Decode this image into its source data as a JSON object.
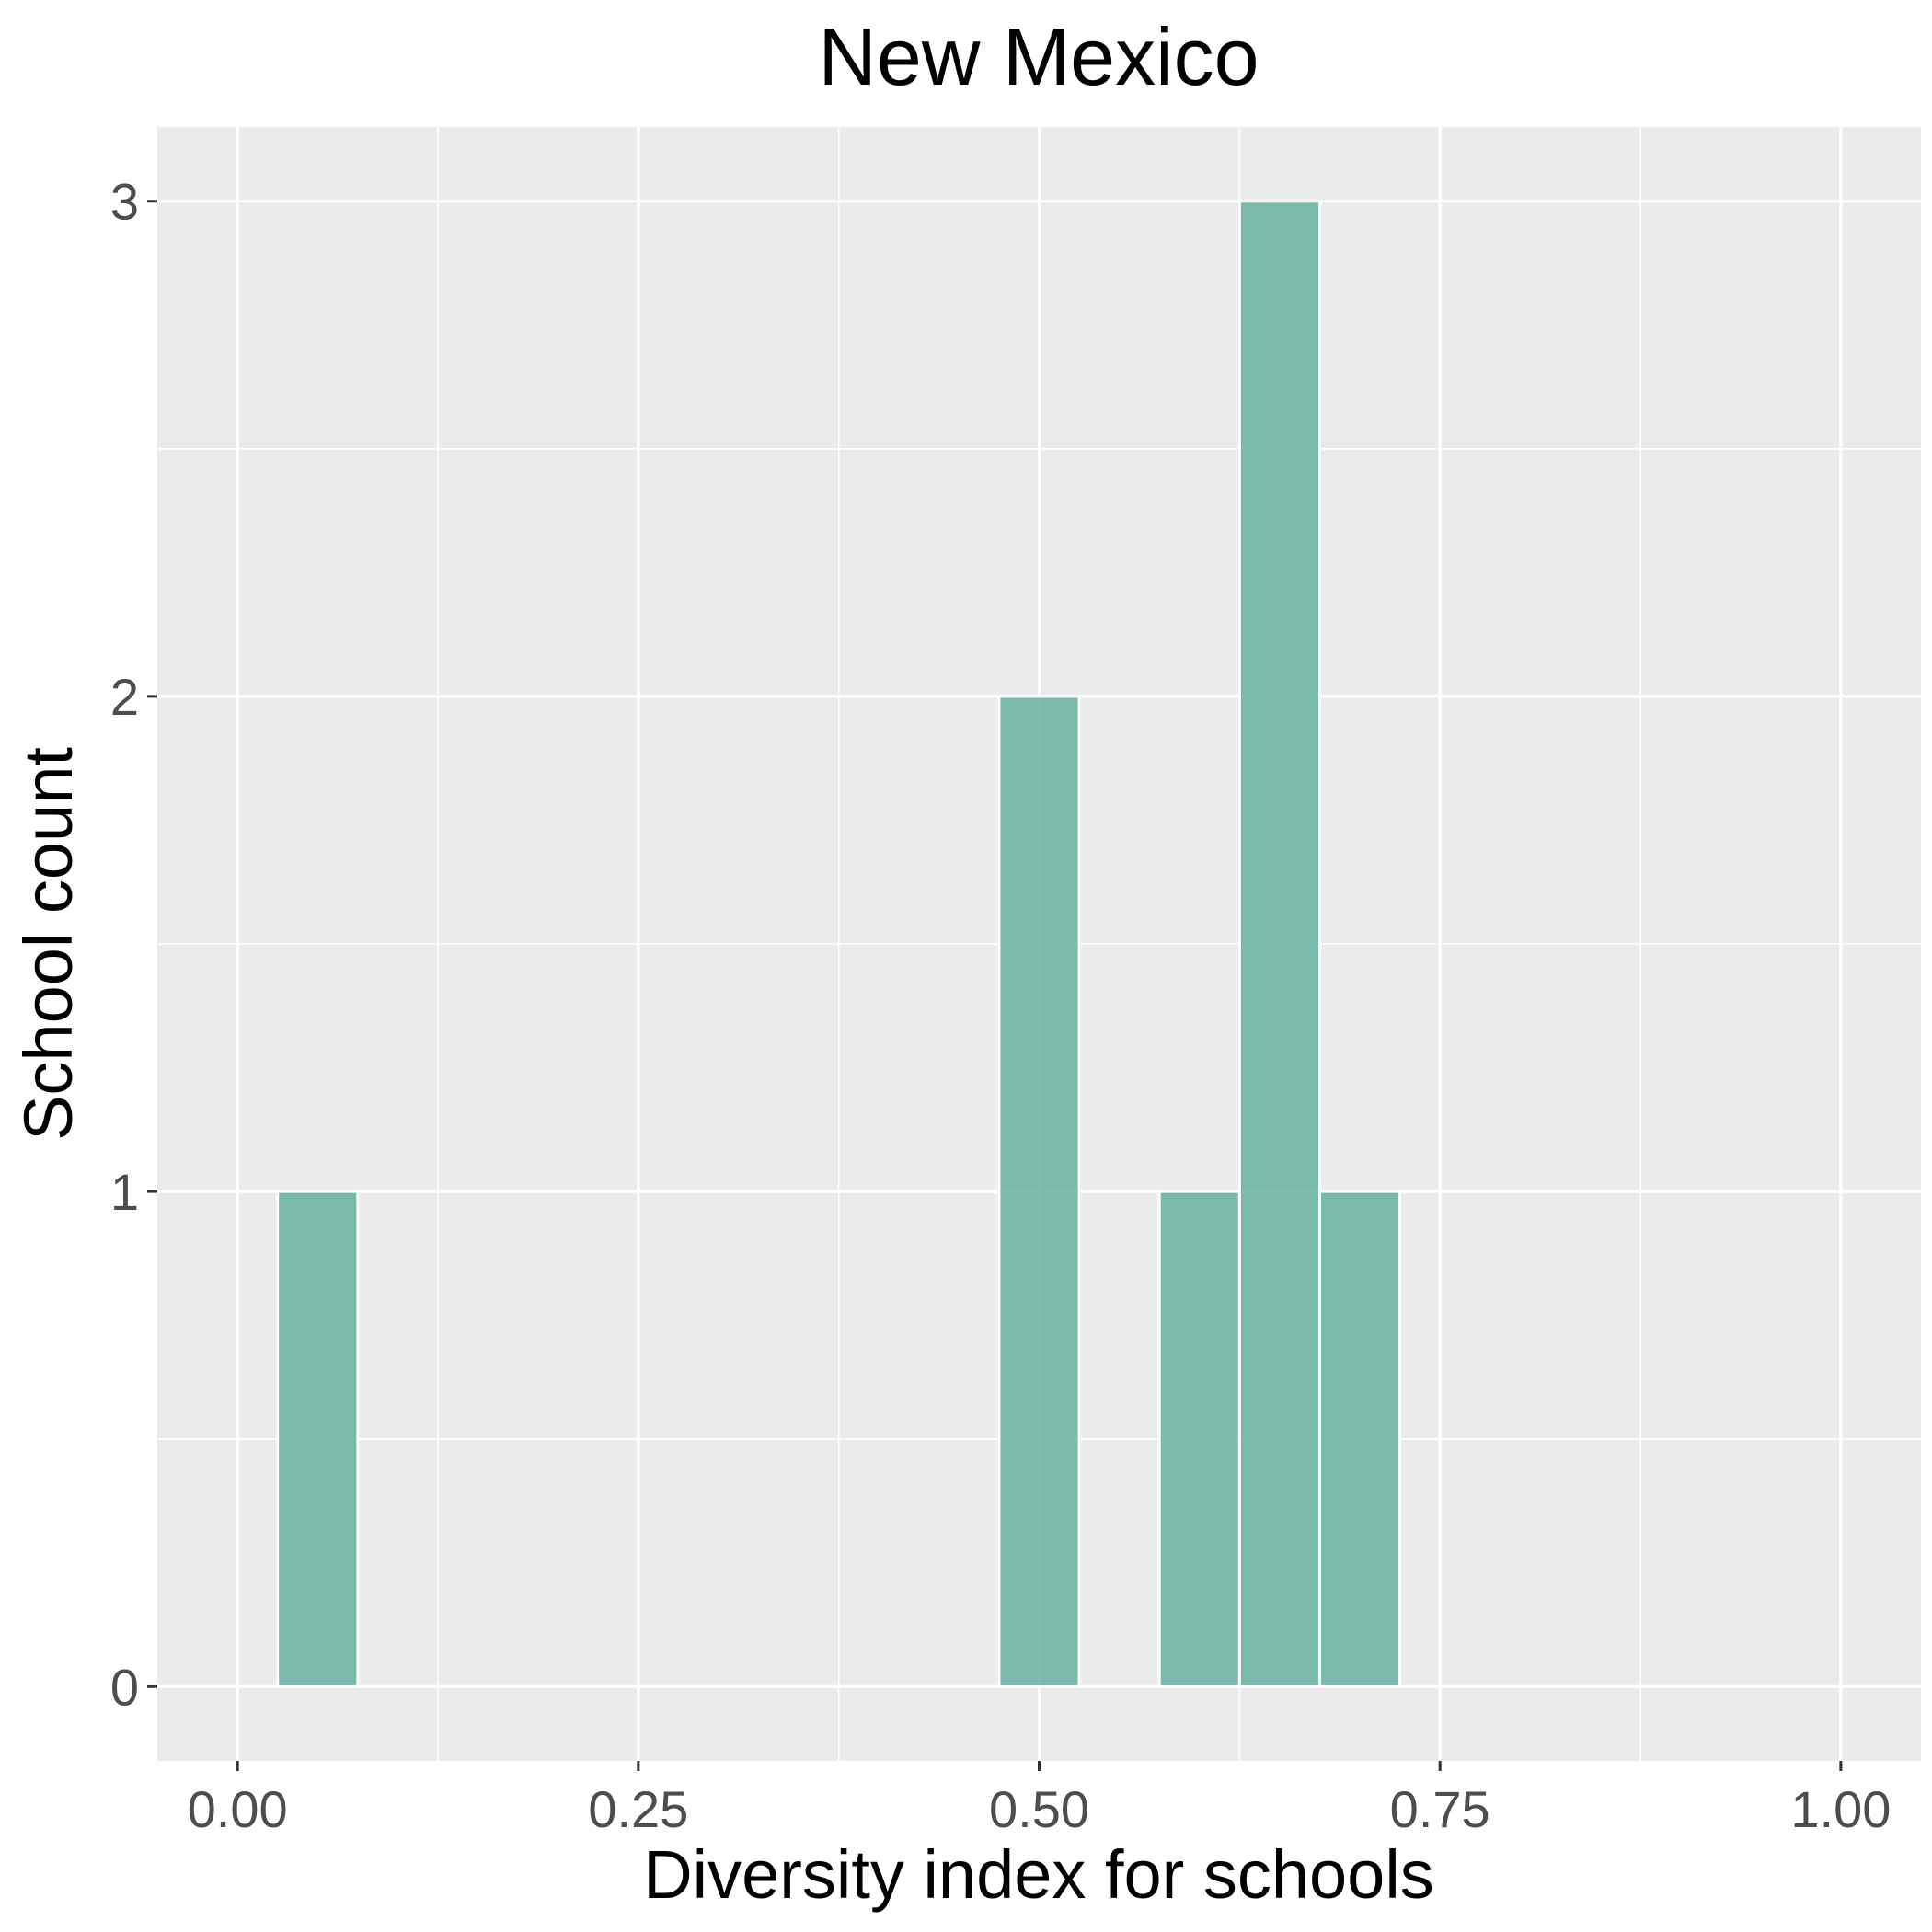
{
  "chart_data": {
    "type": "bar",
    "title": "New Mexico",
    "xlabel": "Diversity index for schools",
    "ylabel": "School count",
    "xlim": [
      -0.05,
      1.05
    ],
    "ylim": [
      -0.15,
      3.15
    ],
    "x_ticks": [
      0.0,
      0.25,
      0.5,
      0.75,
      1.0
    ],
    "x_tick_labels": [
      "0.00",
      "0.25",
      "0.50",
      "0.75",
      "1.00"
    ],
    "y_ticks": [
      0,
      1,
      2,
      3
    ],
    "y_tick_labels": [
      "0",
      "1",
      "2",
      "3"
    ],
    "bin_width": 0.05,
    "bins": [
      {
        "center": 0.05,
        "count": 1
      },
      {
        "center": 0.1,
        "count": 0
      },
      {
        "center": 0.15,
        "count": 0
      },
      {
        "center": 0.2,
        "count": 0
      },
      {
        "center": 0.25,
        "count": 0
      },
      {
        "center": 0.3,
        "count": 0
      },
      {
        "center": 0.35,
        "count": 0
      },
      {
        "center": 0.4,
        "count": 0
      },
      {
        "center": 0.45,
        "count": 0
      },
      {
        "center": 0.5,
        "count": 2
      },
      {
        "center": 0.55,
        "count": 0
      },
      {
        "center": 0.6,
        "count": 1
      },
      {
        "center": 0.65,
        "count": 3
      },
      {
        "center": 0.7,
        "count": 1
      },
      {
        "center": 0.75,
        "count": 0
      },
      {
        "center": 0.8,
        "count": 0
      },
      {
        "center": 0.85,
        "count": 0
      },
      {
        "center": 0.9,
        "count": 0
      },
      {
        "center": 0.95,
        "count": 0
      }
    ],
    "bar_color": "#66b2a0",
    "panel_color": "#ebebeb",
    "grid": true,
    "legend": "none"
  }
}
